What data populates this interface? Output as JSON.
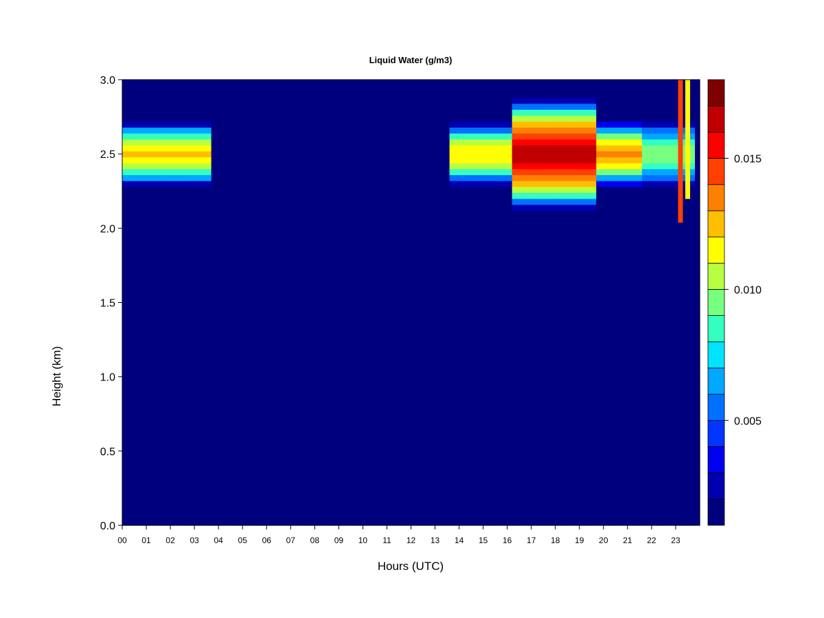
{
  "chart_data": {
    "type": "heatmap",
    "title": "Liquid Water (g/m3)",
    "xlabel": "Hours (UTC)",
    "ylabel": "Height (km)",
    "x_ticks": [
      "00",
      "01",
      "02",
      "03",
      "04",
      "05",
      "06",
      "07",
      "08",
      "09",
      "10",
      "11",
      "12",
      "13",
      "14",
      "15",
      "16",
      "17",
      "18",
      "19",
      "20",
      "21",
      "22",
      "23"
    ],
    "x_range": [
      0,
      24
    ],
    "ylim": [
      0,
      3
    ],
    "y_ticks": [
      "0.0",
      "0.5",
      "1.0",
      "1.5",
      "2.0",
      "2.5",
      "3.0"
    ],
    "colorbar": {
      "range": [
        0.001,
        0.018
      ],
      "levels": 17,
      "ticks": [
        {
          "value": 0.005,
          "label": "0.005"
        },
        {
          "value": 0.01,
          "label": "0.010"
        },
        {
          "value": 0.015,
          "label": "0.015"
        }
      ],
      "colors": [
        "#00007F",
        "#0000B2",
        "#0000F0",
        "#0036FF",
        "#0070FF",
        "#00A8FF",
        "#00E4FF",
        "#33FFC0",
        "#77FF80",
        "#B8FF40",
        "#FFFF00",
        "#FFBE00",
        "#FF8000",
        "#FF4000",
        "#FF0000",
        "#C00000",
        "#7F0000"
      ]
    },
    "background_value": 0.001,
    "cloud_layers": [
      {
        "x_start": 0.0,
        "x_end": 3.7,
        "center_km": 2.5,
        "half_width_km": 0.22,
        "peak": 0.012
      },
      {
        "x_start": 13.6,
        "x_end": 16.2,
        "center_km": 2.5,
        "half_width_km": 0.22,
        "peak": 0.0115
      },
      {
        "x_start": 16.2,
        "x_end": 19.7,
        "center_km": 2.5,
        "half_width_km": 0.38,
        "peak": 0.0165
      },
      {
        "x_start": 19.7,
        "x_end": 21.6,
        "center_km": 2.5,
        "half_width_km": 0.22,
        "peak": 0.013
      },
      {
        "x_start": 21.6,
        "x_end": 23.8,
        "center_km": 2.5,
        "half_width_km": 0.22,
        "peak": 0.0095
      }
    ],
    "spikes": [
      {
        "x": 23.2,
        "y_start": 2.05,
        "y_end": 3.0,
        "peak": 0.0145
      },
      {
        "x": 23.5,
        "y_start": 2.2,
        "y_end": 3.0,
        "peak": 0.011
      }
    ]
  }
}
